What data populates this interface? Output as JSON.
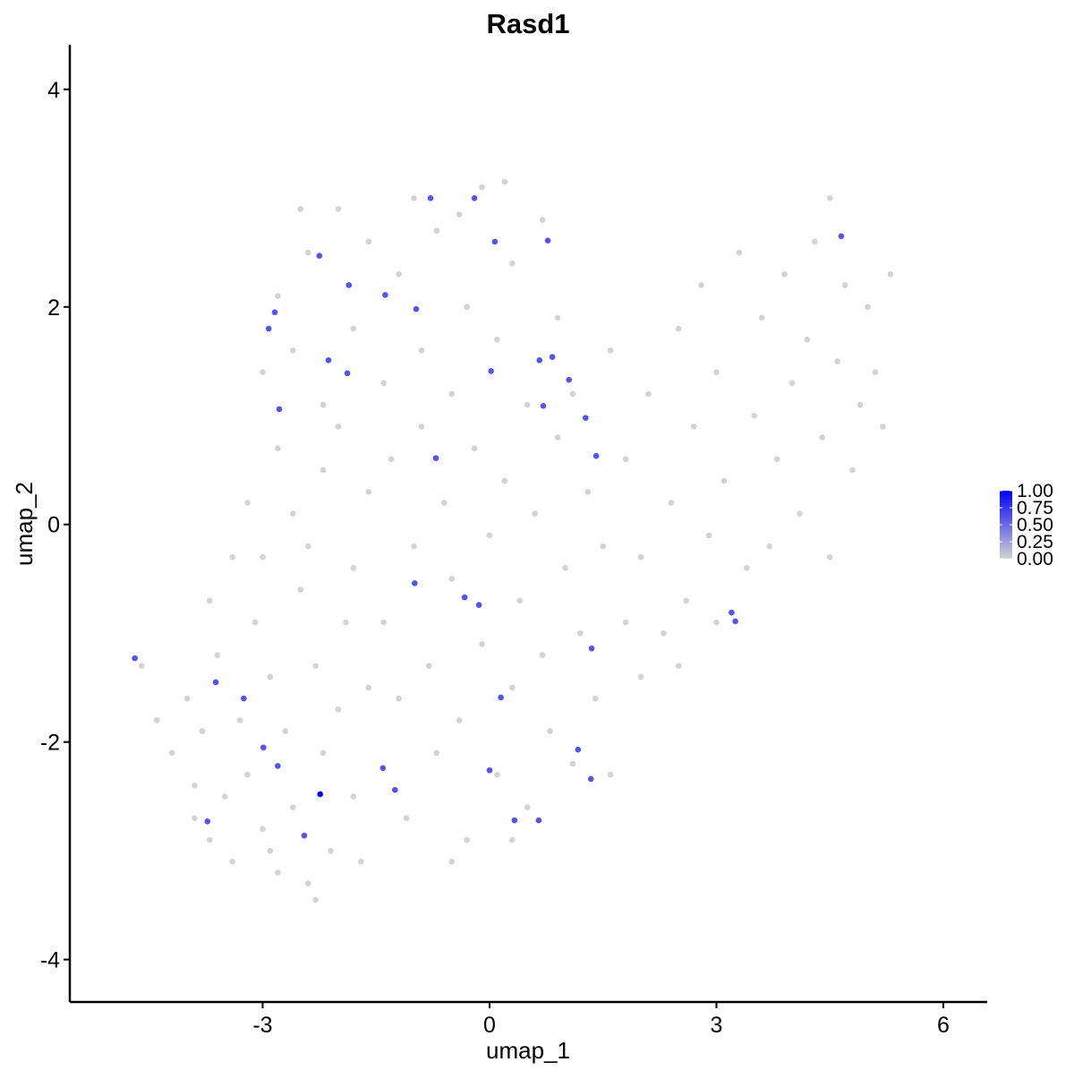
{
  "chart_data": {
    "type": "scatter",
    "title": "Rasd1",
    "x_label": "umap_1",
    "y_label": "umap_2",
    "x": [
      -4.2,
      -4.0,
      -3.9,
      -3.8,
      -3.7,
      -3.6,
      -3.5,
      -3.4,
      -3.3,
      -3.2,
      -3.1,
      -3.0,
      -2.9,
      -2.8,
      -2.7,
      -2.6,
      -2.5,
      -2.4,
      -2.3,
      -2.2,
      -2.1,
      -2.0,
      -1.9,
      -1.8,
      -1.7,
      -1.6,
      -3.7,
      -3.4,
      -4.6,
      -4.4,
      -2.3,
      -3.9,
      -2.9,
      -3.2,
      -3.0,
      -2.8,
      -2.6,
      -2.4,
      -2.2,
      -2.0,
      -1.8,
      -1.6,
      -1.4,
      -1.3,
      -1.2,
      -1.1,
      -1.0,
      -0.9,
      -0.8,
      -0.7,
      -0.6,
      -0.5,
      -0.4,
      -0.3,
      -0.2,
      -0.1,
      0.0,
      0.1,
      0.2,
      0.3,
      0.4,
      0.5,
      0.6,
      0.7,
      0.8,
      0.9,
      1.0,
      1.1,
      1.2,
      1.3,
      1.4,
      1.5,
      -0.5,
      0.3,
      -3.0,
      -2.8,
      -2.6,
      -2.4,
      -2.2,
      -2.0,
      -1.8,
      -1.6,
      -1.4,
      -1.2,
      -1.0,
      -0.9,
      -0.7,
      -0.5,
      -0.3,
      -0.1,
      0.1,
      0.3,
      0.5,
      0.7,
      0.9,
      1.1,
      -2.5,
      -0.4,
      0.2,
      1.6,
      1.8,
      2.0,
      2.1,
      2.3,
      2.4,
      2.5,
      2.6,
      2.7,
      2.8,
      2.9,
      3.0,
      3.1,
      3.3,
      3.4,
      3.5,
      3.6,
      3.7,
      3.8,
      3.9,
      4.0,
      4.1,
      4.2,
      4.3,
      4.4,
      4.5,
      4.6,
      4.7,
      4.8,
      4.9,
      5.0,
      5.1,
      5.2,
      5.3,
      4.5,
      1.8,
      2.0,
      3.0,
      2.5,
      1.6,
      -4.69,
      -3.62,
      -3.25,
      -2.99,
      -2.8,
      -2.24,
      -3.73,
      -2.45,
      -1.41,
      -1.25,
      0.0,
      0.33,
      0.65,
      1.34,
      1.17,
      0.15,
      1.35,
      -0.14,
      -0.33,
      -0.99,
      3.2,
      3.25,
      4.65,
      0.77,
      0.07,
      -0.2,
      -0.78,
      -2.25,
      -1.86,
      -1.38,
      -0.97,
      -2.84,
      -2.92,
      -2.13,
      -1.88,
      -2.78,
      0.02,
      0.66,
      0.83,
      1.05,
      0.71,
      1.27,
      1.41,
      -0.71
    ],
    "values": [
      -2.1,
      -1.6,
      -2.4,
      -1.9,
      -2.9,
      -1.2,
      -2.5,
      -3.1,
      -1.8,
      -2.3,
      -0.9,
      -2.8,
      -1.4,
      -3.2,
      -1.9,
      -2.6,
      -0.6,
      -3.3,
      -1.3,
      -2.1,
      -3.0,
      -1.7,
      -0.9,
      -2.5,
      -3.1,
      -1.5,
      -0.7,
      -0.3,
      -1.3,
      -1.8,
      -3.45,
      -2.7,
      -3.0,
      0.2,
      -0.3,
      0.7,
      0.1,
      -0.2,
      0.5,
      0.9,
      -0.4,
      0.3,
      -0.9,
      0.6,
      -1.6,
      -2.7,
      -0.2,
      0.9,
      -1.3,
      -2.1,
      0.2,
      -0.5,
      -1.8,
      -2.9,
      0.7,
      -1.1,
      -0.1,
      -2.3,
      0.4,
      -1.5,
      -0.7,
      -2.6,
      0.1,
      -1.2,
      -1.9,
      0.8,
      -0.4,
      -2.2,
      -1.0,
      0.3,
      -1.6,
      -0.2,
      -3.1,
      -2.9,
      1.4,
      2.1,
      1.6,
      2.5,
      1.1,
      2.9,
      1.8,
      2.6,
      1.3,
      2.3,
      3.0,
      1.6,
      2.7,
      1.2,
      2.0,
      3.1,
      1.7,
      2.4,
      1.1,
      2.8,
      1.9,
      1.2,
      2.9,
      2.85,
      3.15,
      1.6,
      0.6,
      -0.3,
      1.2,
      -1.0,
      0.2,
      1.8,
      -0.7,
      0.9,
      2.2,
      -0.1,
      1.4,
      0.4,
      2.5,
      -0.4,
      1.0,
      1.9,
      -0.2,
      0.6,
      2.3,
      1.3,
      0.1,
      1.7,
      2.6,
      0.8,
      -0.3,
      1.5,
      2.2,
      0.5,
      1.1,
      2.0,
      1.4,
      0.9,
      2.3,
      3.0,
      -0.9,
      -1.4,
      -0.9,
      -1.3,
      -2.3,
      -1.23,
      -1.45,
      -1.6,
      -2.05,
      -2.22,
      -2.48,
      -2.73,
      -2.86,
      -2.24,
      -2.44,
      -2.26,
      -2.72,
      -2.72,
      -2.34,
      -2.07,
      -1.59,
      -1.14,
      -0.74,
      -0.67,
      -0.54,
      -0.81,
      -0.89,
      2.65,
      2.61,
      2.6,
      3.0,
      3.0,
      2.47,
      2.2,
      2.11,
      1.98,
      1.95,
      1.8,
      1.51,
      1.39,
      1.06,
      1.41,
      1.51,
      1.54,
      1.33,
      1.09,
      0.98,
      0.63,
      0.61
    ],
    "expression": [
      0,
      0,
      0,
      0,
      0,
      0,
      0,
      0,
      0,
      0,
      0,
      0,
      0,
      0,
      0,
      0,
      0,
      0,
      0,
      0,
      0,
      0,
      0,
      0,
      0,
      0,
      0,
      0,
      0,
      0,
      0,
      0,
      0,
      0,
      0,
      0,
      0,
      0,
      0,
      0,
      0,
      0,
      0,
      0,
      0,
      0,
      0,
      0,
      0,
      0,
      0,
      0,
      0,
      0,
      0,
      0,
      0,
      0,
      0,
      0,
      0,
      0,
      0,
      0,
      0,
      0,
      0,
      0,
      0,
      0,
      0,
      0,
      0,
      0,
      0,
      0,
      0,
      0,
      0,
      0,
      0,
      0,
      0,
      0,
      0,
      0,
      0,
      0,
      0,
      0,
      0,
      0,
      0,
      0,
      0,
      0,
      0,
      0,
      0,
      0,
      0,
      0,
      0,
      0,
      0,
      0,
      0,
      0,
      0,
      0,
      0,
      0,
      0,
      0,
      0,
      0,
      0,
      0,
      0,
      0,
      0,
      0,
      0,
      0,
      0,
      0,
      0,
      0,
      0,
      0,
      0,
      0,
      0,
      0,
      0,
      0,
      0,
      0,
      0,
      0.6,
      0.6,
      0.6,
      0.6,
      0.6,
      1,
      0.6,
      0.6,
      0.6,
      0.6,
      0.6,
      0.6,
      0.6,
      0.6,
      0.6,
      0.6,
      0.6,
      0.6,
      0.6,
      0.6,
      0.6,
      0.6,
      0.6,
      0.6,
      0.6,
      0.6,
      0.6,
      0.6,
      0.6,
      0.6,
      0.6,
      0.6,
      0.6,
      0.6,
      0.6,
      0.6,
      0.6,
      0.6,
      0.6,
      0.6,
      0.6,
      0.6,
      0.6,
      0.6
    ],
    "color_low": "#d3d3d3",
    "color_high": "#0000ff",
    "colorbar_lim": [
      0,
      1
    ],
    "colorbar_ticks": [
      {
        "value": 0,
        "label": "0.00"
      },
      {
        "value": 0.25,
        "label": "0.25"
      },
      {
        "value": 0.5,
        "label": "0.50"
      },
      {
        "value": 0.75,
        "label": "0.75"
      },
      {
        "value": 1,
        "label": "1.00"
      }
    ],
    "xlim": [
      -5.55,
      6.58
    ],
    "ylim": [
      -4.39,
      4.41
    ],
    "xticks": [
      -3,
      0,
      3,
      6
    ],
    "yticks": [
      -4,
      -2,
      0,
      2,
      4
    ]
  }
}
